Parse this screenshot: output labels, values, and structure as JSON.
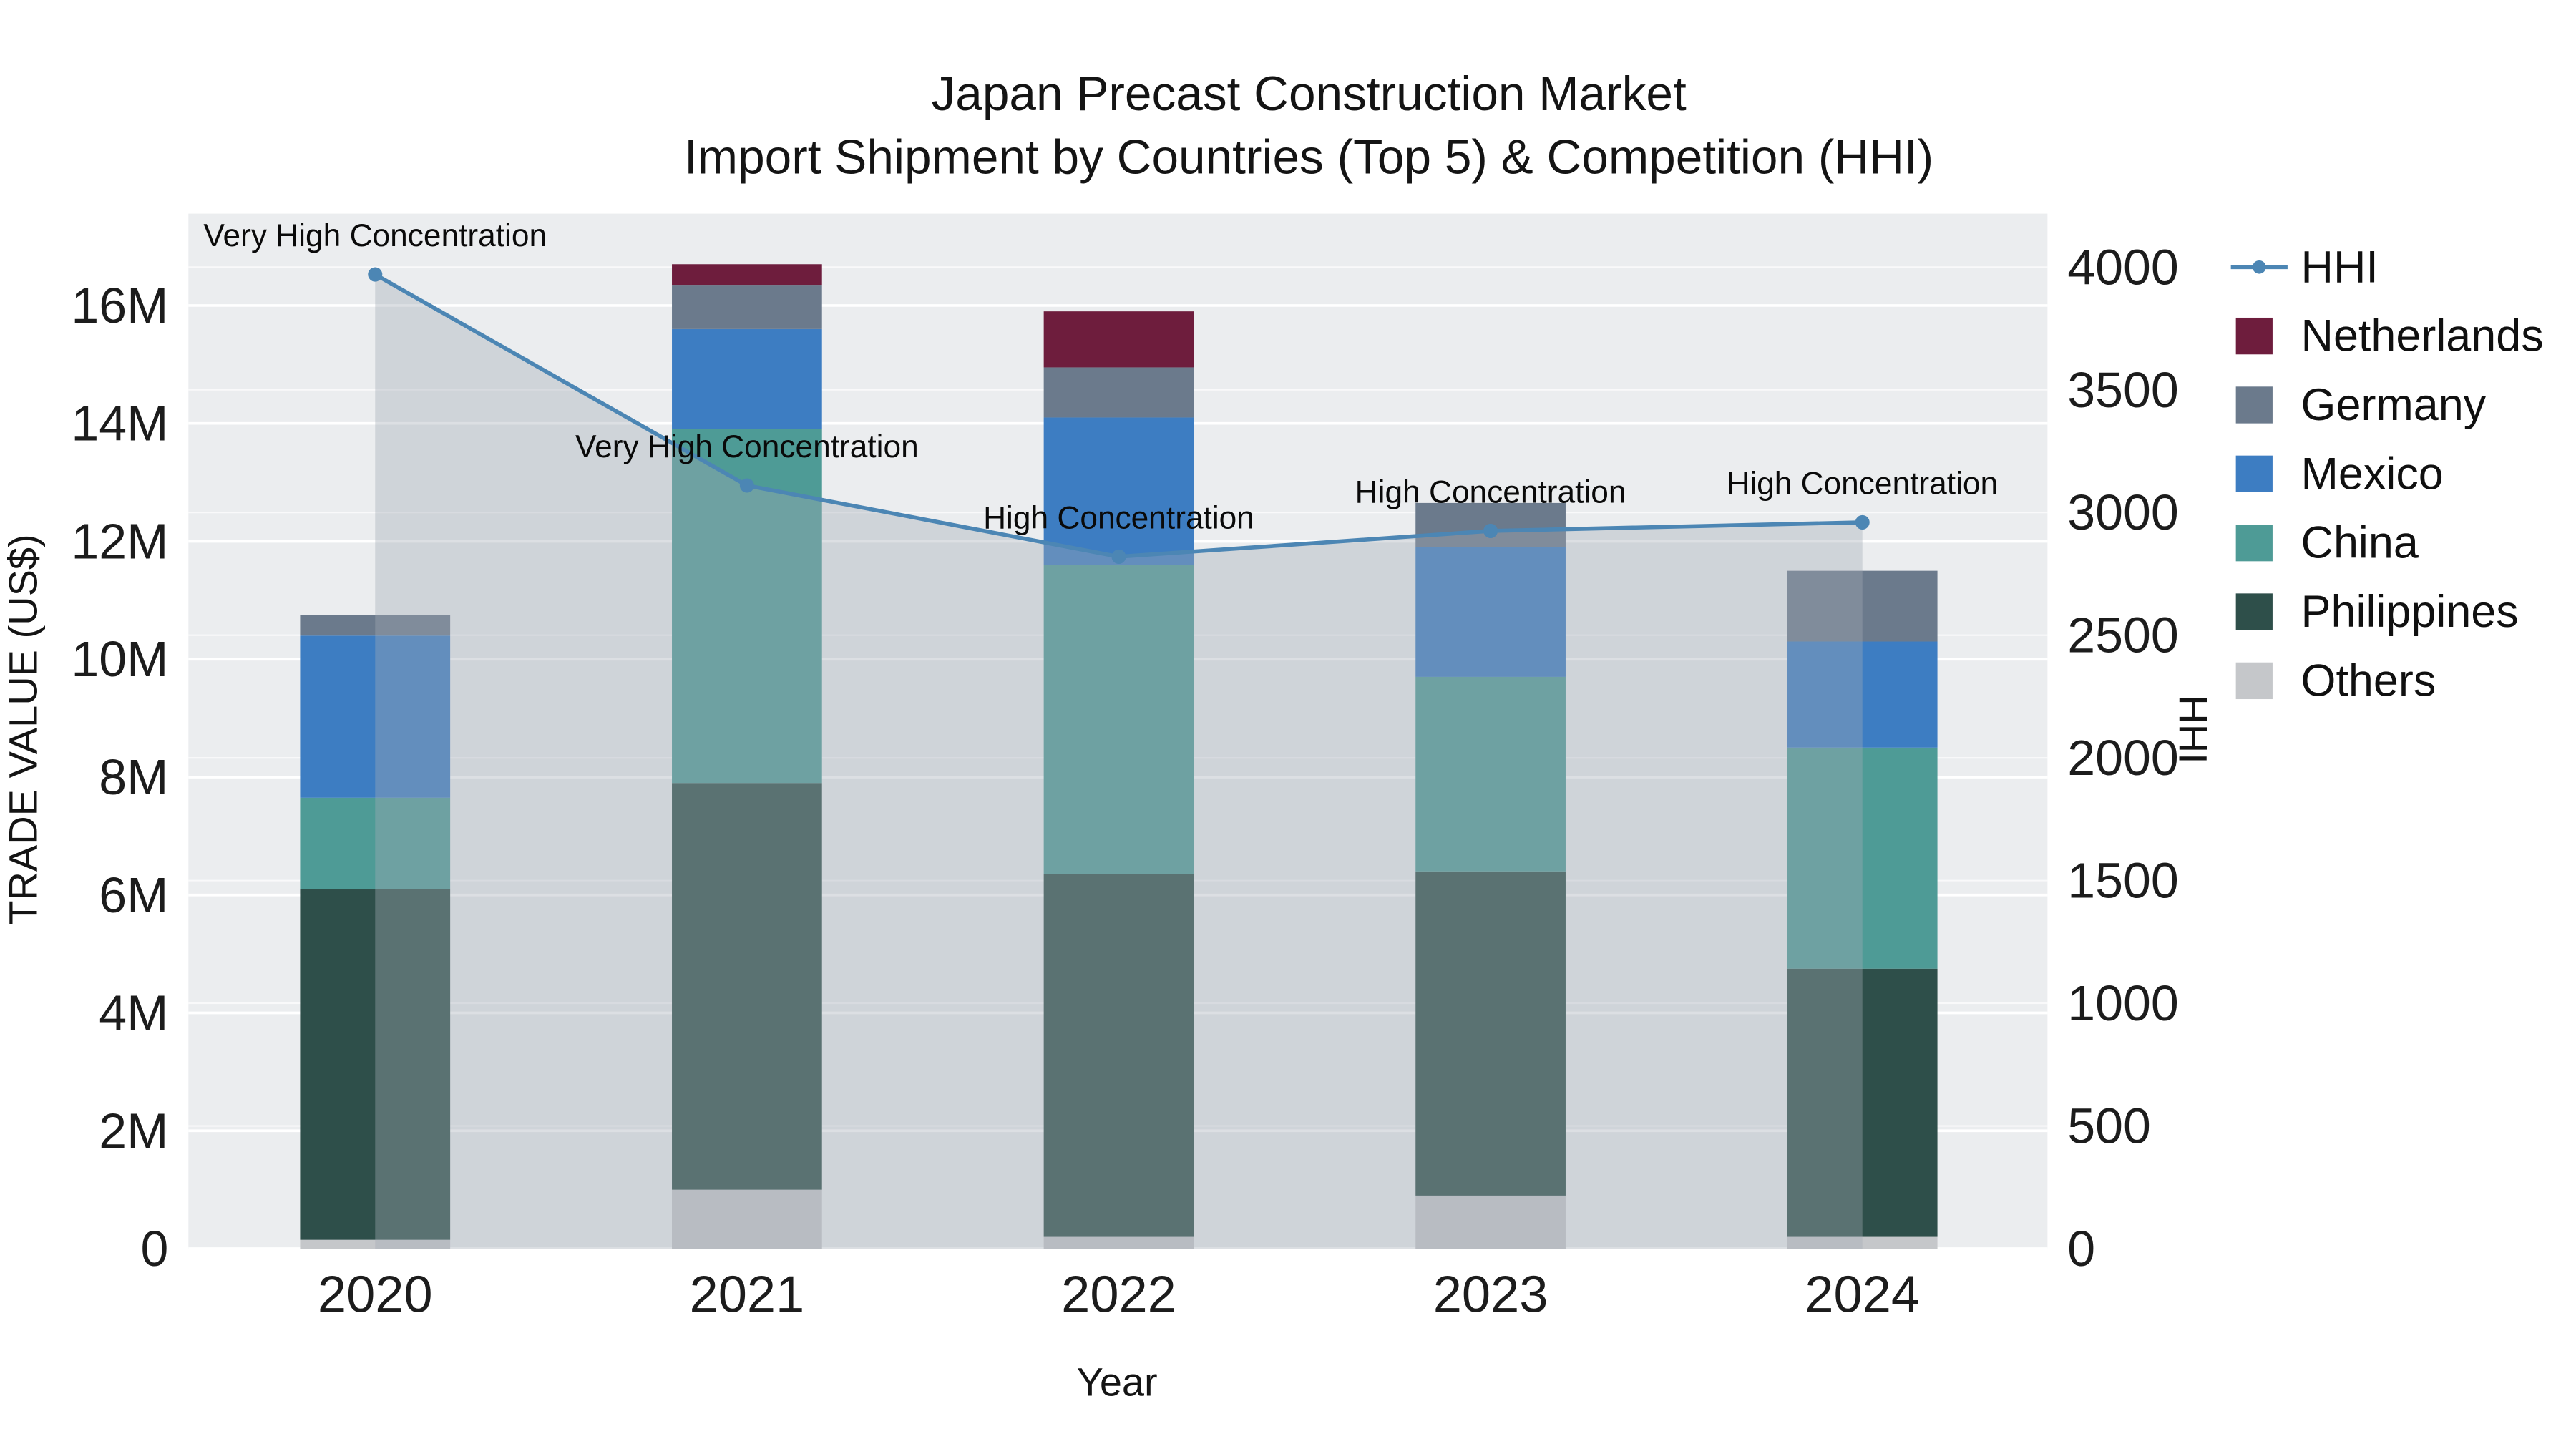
{
  "title": {
    "line1": "Japan Precast Construction Market",
    "line2": "Import Shipment by Countries (Top 5) & Competition (HHI)"
  },
  "chart_data": {
    "type": "stacked-bar+line",
    "title": "Japan Precast Construction Market - Import Shipment by Countries (Top 5) & Competition (HHI)",
    "categories": [
      "2020",
      "2021",
      "2022",
      "2023",
      "2024"
    ],
    "xlabel": "Year",
    "left_axis": {
      "label": "TRADE VALUE (US$)",
      "units": "millions of US$",
      "max": 17.56,
      "ticks": [
        {
          "value": 0,
          "label": "0"
        },
        {
          "value": 2,
          "label": "2M"
        },
        {
          "value": 4,
          "label": "4M"
        },
        {
          "value": 6,
          "label": "6M"
        },
        {
          "value": 8,
          "label": "8M"
        },
        {
          "value": 10,
          "label": "10M"
        },
        {
          "value": 12,
          "label": "12M"
        },
        {
          "value": 14,
          "label": "14M"
        },
        {
          "value": 16,
          "label": "16M"
        }
      ]
    },
    "right_axis": {
      "label": "HHI",
      "max": 4218,
      "ticks": [
        {
          "value": 0,
          "label": "0"
        },
        {
          "value": 500,
          "label": "500"
        },
        {
          "value": 1000,
          "label": "1000"
        },
        {
          "value": 1500,
          "label": "1500"
        },
        {
          "value": 2000,
          "label": "2000"
        },
        {
          "value": 2500,
          "label": "2500"
        },
        {
          "value": 3000,
          "label": "3000"
        },
        {
          "value": 3500,
          "label": "3500"
        },
        {
          "value": 4000,
          "label": "4000"
        }
      ]
    },
    "bar_series": [
      {
        "name": "Others",
        "color": "#c5c7ca",
        "values": [
          0.15,
          1.0,
          0.2,
          0.9,
          0.2
        ]
      },
      {
        "name": "Philippines",
        "color": "#2e4f4a",
        "values": [
          5.95,
          6.9,
          6.15,
          5.5,
          4.55
        ]
      },
      {
        "name": "China",
        "color": "#4e9b96",
        "values": [
          1.55,
          6.0,
          5.25,
          3.3,
          3.75
        ]
      },
      {
        "name": "Mexico",
        "color": "#3d7dc2",
        "values": [
          2.75,
          1.7,
          2.5,
          2.2,
          1.8
        ]
      },
      {
        "name": "Germany",
        "color": "#6b7a8c",
        "values": [
          0.35,
          0.75,
          0.85,
          0.75,
          1.2
        ]
      },
      {
        "name": "Netherlands",
        "color": "#6e1d3d",
        "values": [
          0.0,
          0.35,
          0.95,
          0.0,
          0.0
        ]
      }
    ],
    "line_series": {
      "name": "HHI",
      "color": "#4c86b4",
      "values": [
        3970,
        3110,
        2820,
        2925,
        2960
      ]
    },
    "area_fill_color": "rgba(163,171,181,0.38)",
    "plot_background": "#ebedef",
    "annotations": [
      {
        "x": "2020",
        "text": "Very High Concentration"
      },
      {
        "x": "2021",
        "text": "Very High Concentration"
      },
      {
        "x": "2022",
        "text": "High Concentration"
      },
      {
        "x": "2023",
        "text": "High Concentration"
      },
      {
        "x": "2024",
        "text": "High Concentration"
      }
    ],
    "legend": [
      "HHI",
      "Netherlands",
      "Germany",
      "Mexico",
      "China",
      "Philippines",
      "Others"
    ]
  }
}
